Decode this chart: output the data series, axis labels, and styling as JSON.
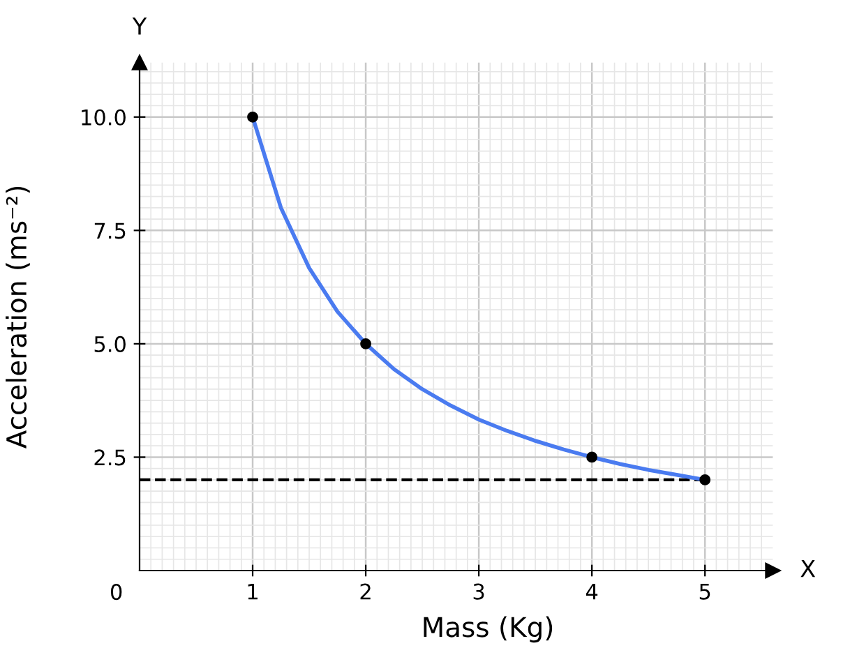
{
  "chart_data": {
    "type": "line",
    "xlabel": "Mass (Kg)",
    "ylabel": "Acceleration (ms⁻²)",
    "series": [
      {
        "color": "#4a7bf0",
        "x": [
          1,
          1.25,
          1.5,
          1.75,
          2,
          2.25,
          2.5,
          2.75,
          3,
          3.25,
          3.5,
          3.75,
          4,
          4.25,
          4.5,
          4.75,
          5
        ],
        "values": [
          10,
          8,
          6.67,
          5.71,
          5,
          4.44,
          4,
          3.64,
          3.33,
          3.08,
          2.86,
          2.67,
          2.5,
          2.35,
          2.22,
          2.11,
          2
        ]
      },
      {
        "type": "scatter",
        "color": "#000000",
        "marker": "circle",
        "x": [
          1,
          2,
          4,
          5
        ],
        "values": [
          10,
          5,
          2.5,
          2
        ]
      }
    ],
    "ref_lines": [
      {
        "axis": "y",
        "value": 2,
        "color": "#000000",
        "line_style": "dashed"
      }
    ],
    "xlim": [
      0,
      5.6
    ],
    "ylim": [
      0,
      11.2
    ],
    "xticks": [
      1,
      2,
      3,
      4,
      5
    ],
    "yticks": [
      {
        "value": 2.5,
        "label": "2.5"
      },
      {
        "value": 5,
        "label": "5.0"
      },
      {
        "value": 7.5,
        "label": "7.5"
      },
      {
        "value": 10,
        "label": "10.0"
      }
    ],
    "annotations": [
      "0",
      "X",
      "Y"
    ],
    "grid": true
  }
}
